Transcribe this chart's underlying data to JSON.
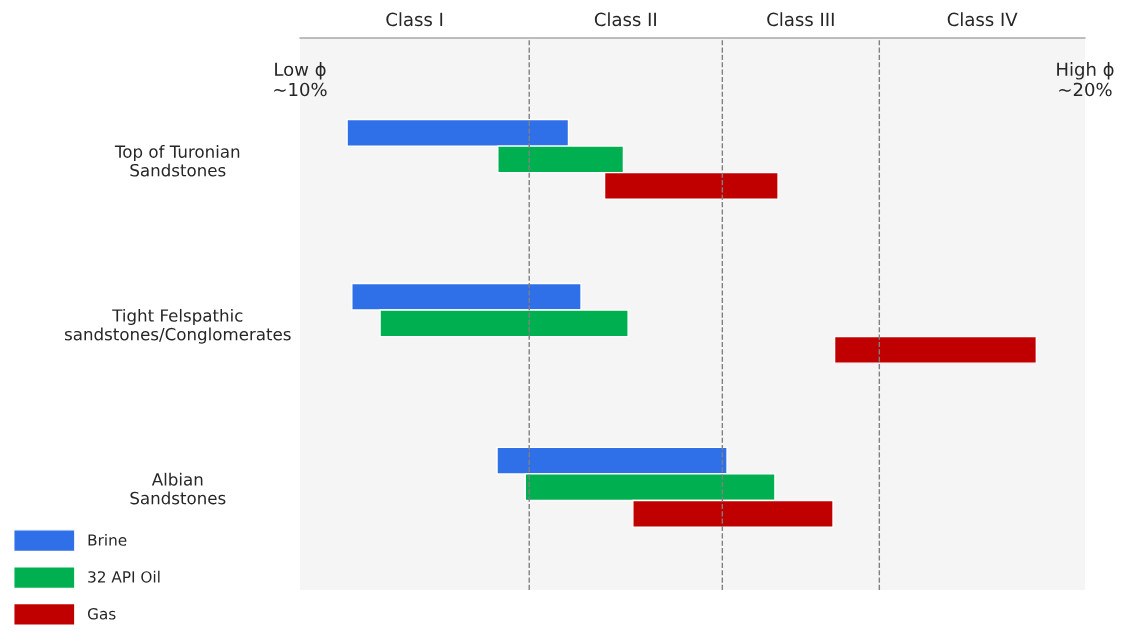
{
  "chart_data": {
    "type": "bar",
    "orientation": "horizontal",
    "categories": [
      "Top of Turonian\nSandstones",
      "Tight Felspathic\nsandstones/Conglomerates",
      "Albian\nSandstones"
    ],
    "series": [
      {
        "name": "Brine",
        "color": "#2f6fe8",
        "base": [
          10.6,
          10.66,
          12.51
        ],
        "values": [
          2.82,
          2.92,
          2.93
        ]
      },
      {
        "name": "32 API Oil",
        "color": "#00b050",
        "base": [
          12.52,
          11.02,
          12.87
        ],
        "values": [
          1.6,
          3.16,
          3.18
        ]
      },
      {
        "name": "Gas",
        "color": "#c00000",
        "base": [
          13.88,
          16.81,
          14.24
        ],
        "values": [
          2.21,
          2.57,
          2.55
        ]
      }
    ],
    "xlim": [
      10,
      20
    ],
    "xticks": [
      {
        "value": 10,
        "label": "Low ϕ\n~10%"
      },
      {
        "value": 20,
        "label": "High ϕ\n~20%"
      }
    ],
    "ref_lines": [
      {
        "axis": "x",
        "value": 12.92,
        "line_style": "dashed",
        "color": "#808080"
      },
      {
        "axis": "x",
        "value": 15.38,
        "line_style": "dashed",
        "color": "#808080"
      },
      {
        "axis": "x",
        "value": 17.38,
        "line_style": "dashed",
        "color": "#808080"
      }
    ],
    "bands": [
      {
        "axis": "x",
        "from": 10,
        "to": 12.92,
        "label": "Class I",
        "color": "#f5f5f5"
      },
      {
        "axis": "x",
        "from": 12.92,
        "to": 15.38,
        "label": "Class II",
        "color": "#f5f5f5"
      },
      {
        "axis": "x",
        "from": 15.38,
        "to": 17.38,
        "label": "Class III",
        "color": "#f5f5f5"
      },
      {
        "axis": "x",
        "from": 17.38,
        "to": 20,
        "label": "Class IV",
        "color": "#f5f5f5"
      }
    ],
    "grid": false,
    "legend": "bottom left"
  }
}
